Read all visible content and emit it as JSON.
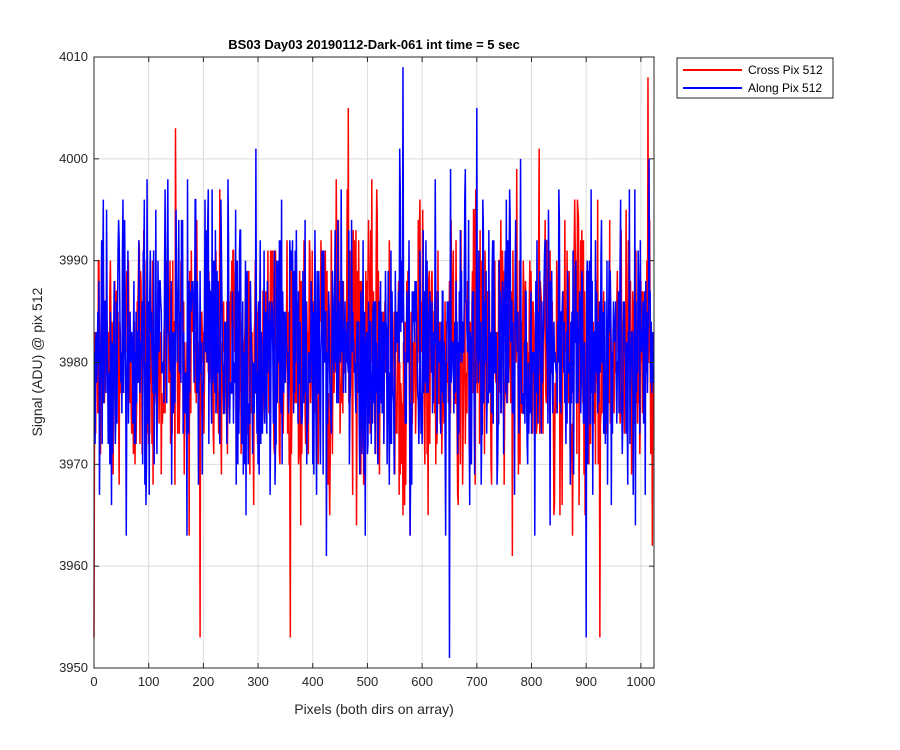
{
  "chart_data": {
    "type": "line",
    "title": "BS03 Day03 20190112-Dark-061 int time = 5 sec",
    "xlabel": "Pixels (both dirs on array)",
    "ylabel": "Signal (ADU) @ pix 512",
    "xlim": [
      0,
      1024
    ],
    "ylim": [
      3950,
      4010
    ],
    "xticks": [
      0,
      100,
      200,
      300,
      400,
      500,
      600,
      700,
      800,
      900,
      1000
    ],
    "yticks": [
      3950,
      3960,
      3970,
      3980,
      3990,
      4000,
      4010
    ],
    "grid": true,
    "legend_position": "outside-top-right",
    "series": [
      {
        "name": "Cross Pix 512",
        "color": "#ff0000",
        "mean": 3981,
        "noise_std": 7,
        "n_points": 1024,
        "key_points": [
          [
            0,
            3953
          ],
          [
            149,
            4003
          ],
          [
            465,
            4005
          ],
          [
            565,
            3965
          ],
          [
            925,
            3953
          ],
          [
            1013,
            4008
          ]
        ]
      },
      {
        "name": "Along Pix 512",
        "color": "#0000ff",
        "mean": 3981,
        "noise_std": 7,
        "n_points": 1024,
        "key_points": [
          [
            565,
            4009
          ],
          [
            650,
            3951
          ],
          [
            700,
            4005
          ],
          [
            900,
            3953
          ],
          [
            1015,
            4000
          ]
        ]
      }
    ]
  }
}
